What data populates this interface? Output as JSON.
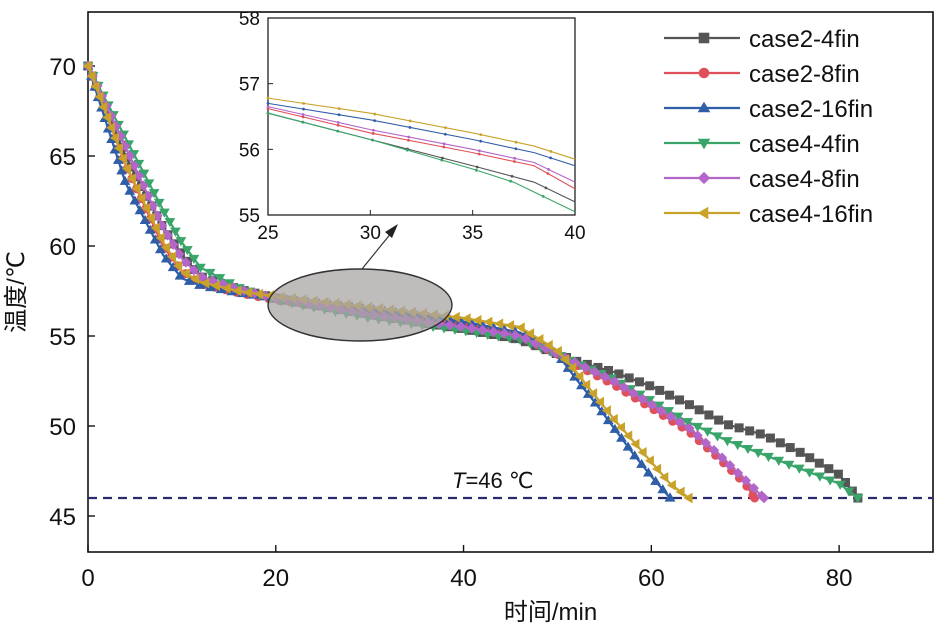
{
  "chart_data": {
    "type": "line",
    "xlabel": "时间/min",
    "ylabel": "温度/℃",
    "xlim": [
      0,
      90
    ],
    "ylim": [
      43,
      73
    ],
    "xticks": [
      0,
      20,
      40,
      60,
      80
    ],
    "yticks": [
      45,
      50,
      55,
      60,
      65,
      70
    ],
    "reference_line": {
      "y": 46,
      "label_var": "T",
      "label_rest": "=46 ℃"
    },
    "legend": {
      "position": "top-right"
    },
    "series": [
      {
        "name": "case2-4fin",
        "color": "#555555",
        "marker": "square",
        "x": [
          0,
          4,
          8,
          10,
          12,
          16,
          20,
          30,
          40,
          46,
          50,
          52,
          56,
          60,
          64,
          68,
          72,
          76,
          80,
          82
        ],
        "y": [
          70,
          65,
          61,
          59.5,
          58.3,
          57.6,
          57.1,
          56.2,
          55.4,
          54.8,
          54.0,
          53.6,
          53.0,
          52.2,
          51.2,
          50.1,
          49.5,
          48.5,
          47.3,
          46
        ]
      },
      {
        "name": "case2-8fin",
        "color": "#e0505a",
        "marker": "circle",
        "x": [
          0,
          4,
          8,
          10,
          12,
          16,
          20,
          30,
          40,
          46,
          50,
          52,
          56,
          60,
          64,
          67,
          70,
          71
        ],
        "y": [
          70,
          64.5,
          60,
          58.6,
          57.9,
          57.4,
          57.0,
          56.3,
          55.6,
          55.0,
          54.0,
          53.4,
          52.3,
          51.0,
          49.7,
          48.3,
          46.8,
          46
        ]
      },
      {
        "name": "case2-16fin",
        "color": "#2f5da8",
        "marker": "triangle-up",
        "x": [
          0,
          4,
          8,
          10,
          12,
          16,
          20,
          30,
          40,
          46,
          50,
          52,
          54,
          56,
          58,
          60,
          62
        ],
        "y": [
          70,
          63.5,
          59.5,
          58.2,
          57.8,
          57.4,
          57.1,
          56.5,
          55.8,
          55.2,
          54.0,
          52.6,
          51.3,
          49.9,
          48.5,
          47.2,
          46
        ]
      },
      {
        "name": "case4-4fin",
        "color": "#3aa56a",
        "marker": "triangle-down",
        "x": [
          0,
          4,
          8,
          10,
          12,
          16,
          20,
          30,
          40,
          46,
          50,
          52,
          56,
          60,
          64,
          68,
          72,
          76,
          80,
          82
        ],
        "y": [
          70,
          66,
          62,
          60.2,
          58.8,
          57.7,
          57.0,
          56.0,
          55.3,
          54.8,
          54.0,
          53.5,
          52.6,
          51.4,
          50.2,
          49.2,
          48.4,
          47.6,
          46.8,
          46
        ]
      },
      {
        "name": "case4-8fin",
        "color": "#b266c9",
        "marker": "diamond",
        "x": [
          0,
          4,
          8,
          10,
          12,
          16,
          20,
          30,
          40,
          46,
          50,
          52,
          56,
          60,
          64,
          67,
          70,
          72
        ],
        "y": [
          70,
          65.5,
          61,
          59.3,
          58.3,
          57.6,
          57.1,
          56.2,
          55.5,
          55.0,
          54.0,
          53.5,
          52.5,
          51.2,
          49.9,
          48.5,
          47.0,
          46
        ]
      },
      {
        "name": "case4-16fin",
        "color": "#c9a22a",
        "marker": "triangle-left",
        "x": [
          0,
          4,
          8,
          10,
          12,
          16,
          20,
          30,
          40,
          46,
          50,
          52,
          54,
          56,
          58,
          60,
          62,
          64
        ],
        "y": [
          70,
          64.5,
          60.2,
          58.6,
          58.0,
          57.5,
          57.2,
          56.6,
          56.0,
          55.5,
          54.2,
          53.0,
          51.7,
          50.4,
          49.2,
          48.0,
          46.8,
          46
        ]
      }
    ],
    "inset": {
      "xlim": [
        25,
        40
      ],
      "ylim": [
        55,
        58
      ],
      "xticks": [
        25,
        30,
        35,
        40
      ],
      "yticks": [
        55,
        56,
        57,
        58
      ],
      "series": [
        {
          "name": "case2-4fin",
          "x": [
            25,
            30,
            35,
            38,
            40
          ],
          "y": [
            56.55,
            56.15,
            55.75,
            55.5,
            55.2
          ]
        },
        {
          "name": "case2-8fin",
          "x": [
            25,
            30,
            35,
            38,
            40
          ],
          "y": [
            56.62,
            56.25,
            55.95,
            55.75,
            55.4
          ]
        },
        {
          "name": "case2-16fin",
          "x": [
            25,
            30,
            35,
            38,
            40
          ],
          "y": [
            56.7,
            56.45,
            56.15,
            55.95,
            55.75
          ]
        },
        {
          "name": "case4-4fin",
          "x": [
            25,
            30,
            35,
            37,
            38,
            40
          ],
          "y": [
            56.55,
            56.15,
            55.7,
            55.5,
            55.35,
            55.05
          ]
        },
        {
          "name": "case4-8fin",
          "x": [
            25,
            30,
            35,
            38,
            40
          ],
          "y": [
            56.65,
            56.3,
            56.0,
            55.8,
            55.5
          ]
        },
        {
          "name": "case4-16fin",
          "x": [
            25,
            30,
            35,
            38,
            40
          ],
          "y": [
            56.78,
            56.55,
            56.25,
            56.05,
            55.85
          ]
        }
      ]
    }
  }
}
